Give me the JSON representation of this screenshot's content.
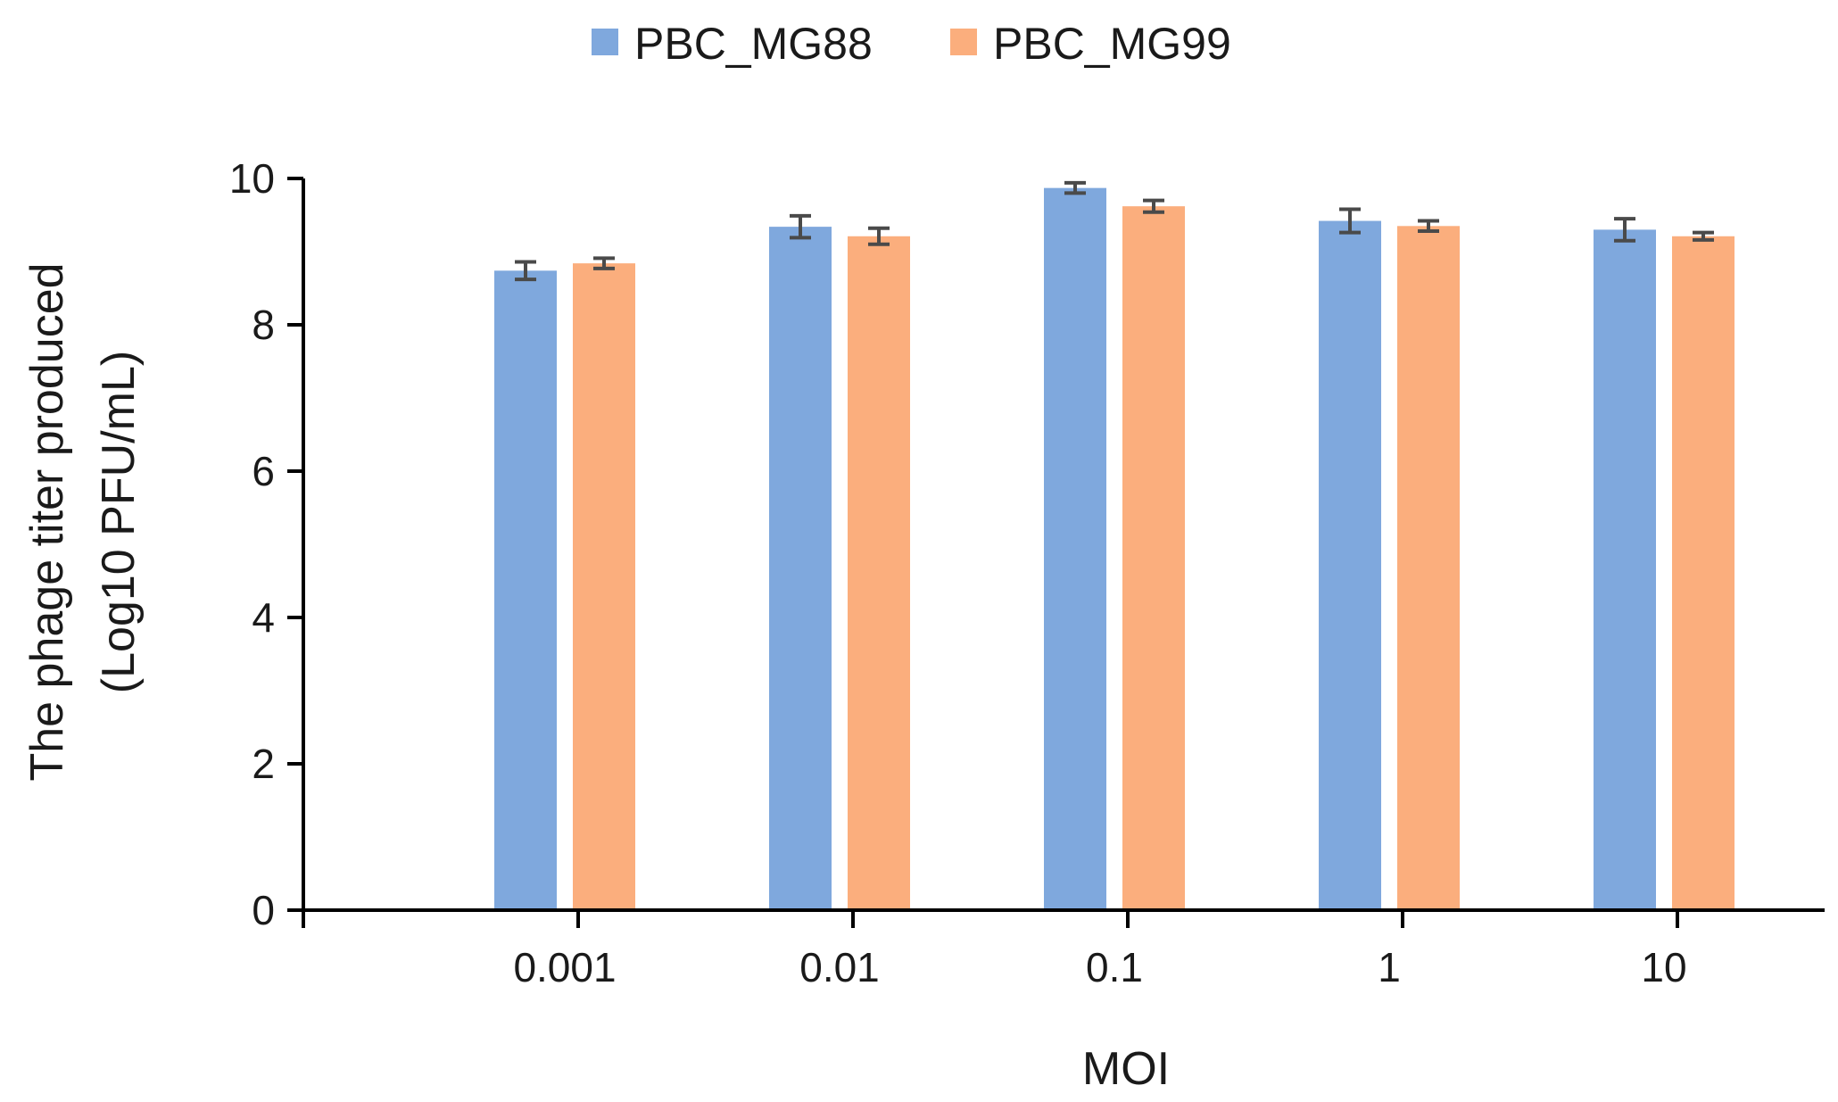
{
  "chart_data": {
    "type": "bar",
    "title": "",
    "xlabel": "MOI",
    "ylabel": [
      "The phage titer produced",
      "(Log10 PFU/mL)"
    ],
    "categories": [
      "0.001",
      "0.01",
      "0.1",
      "1",
      "10"
    ],
    "ylim": [
      0,
      10
    ],
    "yticks": [
      "0",
      "2",
      "4",
      "6",
      "8",
      "10"
    ],
    "grid": false,
    "legend_position": "top-center",
    "series": [
      {
        "name": "PBC_MG88",
        "color": "#7fa8dd",
        "values": [
          8.74,
          9.34,
          9.87,
          9.42,
          9.3
        ],
        "errors": [
          0.12,
          0.15,
          0.07,
          0.16,
          0.15
        ]
      },
      {
        "name": "PBC_MG99",
        "color": "#fbae7d",
        "values": [
          8.84,
          9.21,
          9.62,
          9.35,
          9.21
        ]
      }
    ],
    "error_bars_ordered": [
      [
        0.12,
        0.15,
        0.07,
        0.16,
        0.15
      ],
      [
        0.07,
        0.11,
        0.08,
        0.07,
        0.05
      ]
    ]
  }
}
